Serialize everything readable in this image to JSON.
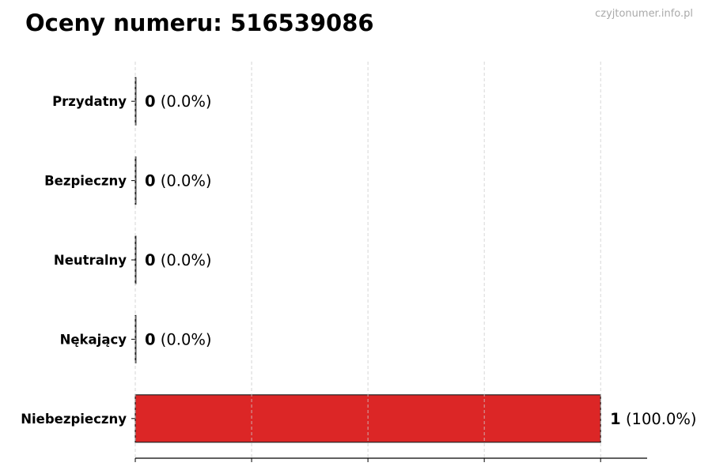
{
  "watermark": "czyjtonumer.info.pl",
  "chart_data": {
    "type": "bar",
    "orientation": "horizontal",
    "title": "Oceny numeru: 516539086",
    "categories": [
      "Przydatny",
      "Bezpieczny",
      "Neutralny",
      "Nękający",
      "Niebezpieczny"
    ],
    "values": [
      0,
      0,
      0,
      0,
      1
    ],
    "data_labels": [
      {
        "count": "0",
        "pct": "(0.0%)"
      },
      {
        "count": "0",
        "pct": "(0.0%)"
      },
      {
        "count": "0",
        "pct": "(0.0%)"
      },
      {
        "count": "0",
        "pct": "(0.0%)"
      },
      {
        "count": "1",
        "pct": "(100.0%)"
      }
    ],
    "bar_color": "#dc2626",
    "xlim": [
      0,
      1.1
    ],
    "x_gridlines": [
      0,
      0.25,
      0.5,
      0.75,
      1.0
    ],
    "grid": true,
    "xlabel": "",
    "ylabel": ""
  }
}
